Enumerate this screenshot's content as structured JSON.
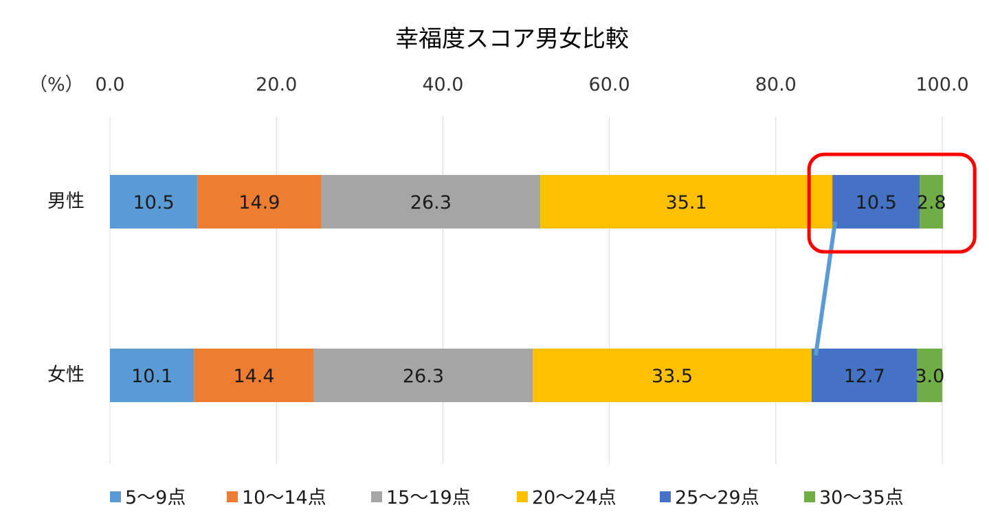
{
  "chart_data": {
    "type": "bar",
    "orientation": "horizontal",
    "stacked": true,
    "title": "幸福度スコア男女比較",
    "axis_unit_label": "（%）",
    "xlim": [
      0,
      100
    ],
    "x_ticks": [
      "0.0",
      "20.0",
      "40.0",
      "60.0",
      "80.0",
      "100.0"
    ],
    "grid": true,
    "legend_position": "bottom",
    "categories": [
      "男性",
      "女性"
    ],
    "series": [
      {
        "name": "5～9点",
        "color": "#5B9BD5",
        "values": [
          10.5,
          10.1
        ],
        "labels": [
          "10.5",
          "10.1"
        ]
      },
      {
        "name": "10～14点",
        "color": "#ED7D31",
        "values": [
          14.9,
          14.4
        ],
        "labels": [
          "14.9",
          "14.4"
        ]
      },
      {
        "name": "15～19点",
        "color": "#A5A5A5",
        "values": [
          26.3,
          26.3
        ],
        "labels": [
          "26.3",
          "26.3"
        ]
      },
      {
        "name": "20～24点",
        "color": "#FFC000",
        "values": [
          35.1,
          33.5
        ],
        "labels": [
          "35.1",
          "33.5"
        ]
      },
      {
        "name": "25～29点",
        "color": "#4472C4",
        "values": [
          10.5,
          12.7
        ],
        "labels": [
          "10.5",
          "12.7"
        ]
      },
      {
        "name": "30～35点",
        "color": "#70AD47",
        "values": [
          2.8,
          3.0
        ],
        "labels": [
          "2.8",
          "3.0"
        ]
      }
    ],
    "annotations": {
      "highlight_box": {
        "category": "男性",
        "series_from": "25～29点",
        "series_to": "30～35点",
        "color": "#FF0000"
      },
      "connector_line": {
        "from_category": "男性",
        "to_category": "女性",
        "boundary": "20～24点 | 25～29点",
        "color": "#5B9BD5"
      }
    }
  }
}
